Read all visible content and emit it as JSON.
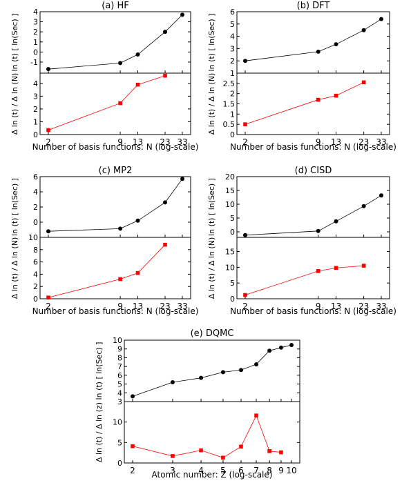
{
  "chart_data": [
    {
      "type": "line",
      "title": "(a) HF",
      "xlabel": "Number of  basis functions: N  (log-scale)",
      "x_scale": "log",
      "x_ticks": [
        "2",
        "9",
        "13",
        "23",
        "33"
      ],
      "upper": {
        "ylabel": "ln (t)  [ ln(Sec) ]",
        "ylim": [
          -2.1,
          4.0
        ],
        "yticks": [
          -1,
          0,
          1,
          2,
          3,
          4
        ],
        "series": [
          {
            "color": "#000000",
            "marker": "circle",
            "x": [
              2,
              9,
              13,
              23,
              33
            ],
            "y": [
              -1.7,
              -1.1,
              -0.25,
              2.0,
              3.7
            ]
          }
        ]
      },
      "lower": {
        "ylabel": "Δ ln (t) / Δ ln (N)",
        "ylim": [
          0,
          4.8
        ],
        "yticks": [
          0,
          1,
          2,
          3,
          4
        ],
        "series": [
          {
            "color": "#ff0000",
            "marker": "square",
            "x": [
              2,
              9,
              13,
              23
            ],
            "y": [
              0.35,
              2.45,
              3.9,
              4.6
            ]
          }
        ]
      }
    },
    {
      "type": "line",
      "title": "(b) DFT",
      "xlabel": "Number of  basis functions: N  (log-scale)",
      "x_scale": "log",
      "x_ticks": [
        "2",
        "9",
        "13",
        "23",
        "33"
      ],
      "upper": {
        "ylabel": "ln (t)  [ ln(Sec) ]",
        "ylim": [
          1.0,
          6.0
        ],
        "yticks": [
          1,
          2,
          3,
          4,
          5,
          6
        ],
        "series": [
          {
            "color": "#000000",
            "marker": "circle",
            "x": [
              2,
              9,
              13,
              23,
              33
            ],
            "y": [
              2.0,
              2.75,
              3.35,
              4.5,
              5.4
            ]
          }
        ]
      },
      "lower": {
        "ylabel": "Δ ln (t) / Δ ln (N)",
        "ylim": [
          0,
          3.0
        ],
        "yticks": [
          0,
          0.5,
          1,
          1.5,
          2,
          2.5
        ],
        "series": [
          {
            "color": "#ff0000",
            "marker": "square",
            "x": [
              2,
              9,
              13,
              23
            ],
            "y": [
              0.5,
              1.7,
              1.9,
              2.55
            ]
          }
        ]
      }
    },
    {
      "type": "line",
      "title": "(c) MP2",
      "xlabel": "Number of  basis functions: N  (log-scale)",
      "x_scale": "log",
      "x_ticks": [
        "2",
        "9",
        "13",
        "23",
        "33"
      ],
      "upper": {
        "ylabel": "ln (t)  [ ln(Sec) ]",
        "ylim": [
          -2.0,
          6.0
        ],
        "yticks": [
          0,
          2,
          4,
          6
        ],
        "series": [
          {
            "color": "#000000",
            "marker": "circle",
            "x": [
              2,
              9,
              13,
              23,
              33
            ],
            "y": [
              -1.2,
              -0.85,
              0.2,
              2.6,
              5.7
            ]
          }
        ]
      },
      "lower": {
        "ylabel": "Δ ln (t) / Δ ln (N)",
        "ylim": [
          0,
          10
        ],
        "yticks": [
          0,
          2,
          4,
          6,
          8,
          10
        ],
        "series": [
          {
            "color": "#ff0000",
            "marker": "square",
            "x": [
              2,
              9,
              13,
              23
            ],
            "y": [
              0.2,
              3.2,
              4.2,
              8.8
            ]
          }
        ]
      }
    },
    {
      "type": "line",
      "title": "(d) CISD",
      "xlabel": "Number of  basis functions: N  (log-scale)",
      "x_scale": "log",
      "x_ticks": [
        "2",
        "9",
        "13",
        "23",
        "33"
      ],
      "upper": {
        "ylabel": "ln (t)  [ ln(Sec) ]",
        "ylim": [
          -2.0,
          20.0
        ],
        "yticks": [
          0,
          5,
          10,
          15,
          20
        ],
        "series": [
          {
            "color": "#000000",
            "marker": "circle",
            "x": [
              2,
              9,
              13,
              23,
              33
            ],
            "y": [
              -1.2,
              0.3,
              3.8,
              9.3,
              13.2
            ]
          }
        ]
      },
      "lower": {
        "ylabel": "Δ ln (t) / Δ ln (N)",
        "ylim": [
          0,
          19.5
        ],
        "yticks": [
          0,
          5,
          10,
          15
        ],
        "series": [
          {
            "color": "#ff0000",
            "marker": "square",
            "x": [
              2,
              9,
              13,
              23
            ],
            "y": [
              1.2,
              8.8,
              9.8,
              10.5
            ]
          }
        ]
      }
    },
    {
      "type": "line",
      "title": "(e) DQMC",
      "xlabel": "Atomic number:  Z  (log-scale)",
      "x_scale": "log",
      "x_ticks": [
        "2",
        "3",
        "4",
        "5",
        "6",
        "7",
        "8",
        "9",
        "10"
      ],
      "upper": {
        "ylabel": "ln (t)  [ ln(Sec) ]",
        "ylim": [
          3.0,
          10.0
        ],
        "yticks": [
          3,
          4,
          5,
          6,
          7,
          8,
          9,
          10
        ],
        "series": [
          {
            "color": "#000000",
            "marker": "circle",
            "x": [
              2,
              3,
              4,
              5,
              6,
              7,
              8,
              9,
              10
            ],
            "y": [
              3.6,
              5.2,
              5.7,
              6.35,
              6.6,
              7.25,
              8.8,
              9.15,
              9.45
            ]
          }
        ]
      },
      "lower": {
        "ylabel": "Δ ln (t) / Δ ln (z)",
        "ylim": [
          0,
          15
        ],
        "yticks": [
          0,
          5,
          10
        ],
        "series": [
          {
            "color": "#ff0000",
            "marker": "square",
            "x": [
              2,
              3,
              4,
              5,
              6,
              7,
              8,
              9
            ],
            "y": [
              4.1,
              1.7,
              3.1,
              1.3,
              4.0,
              11.6,
              2.9,
              2.6
            ]
          }
        ]
      }
    }
  ]
}
